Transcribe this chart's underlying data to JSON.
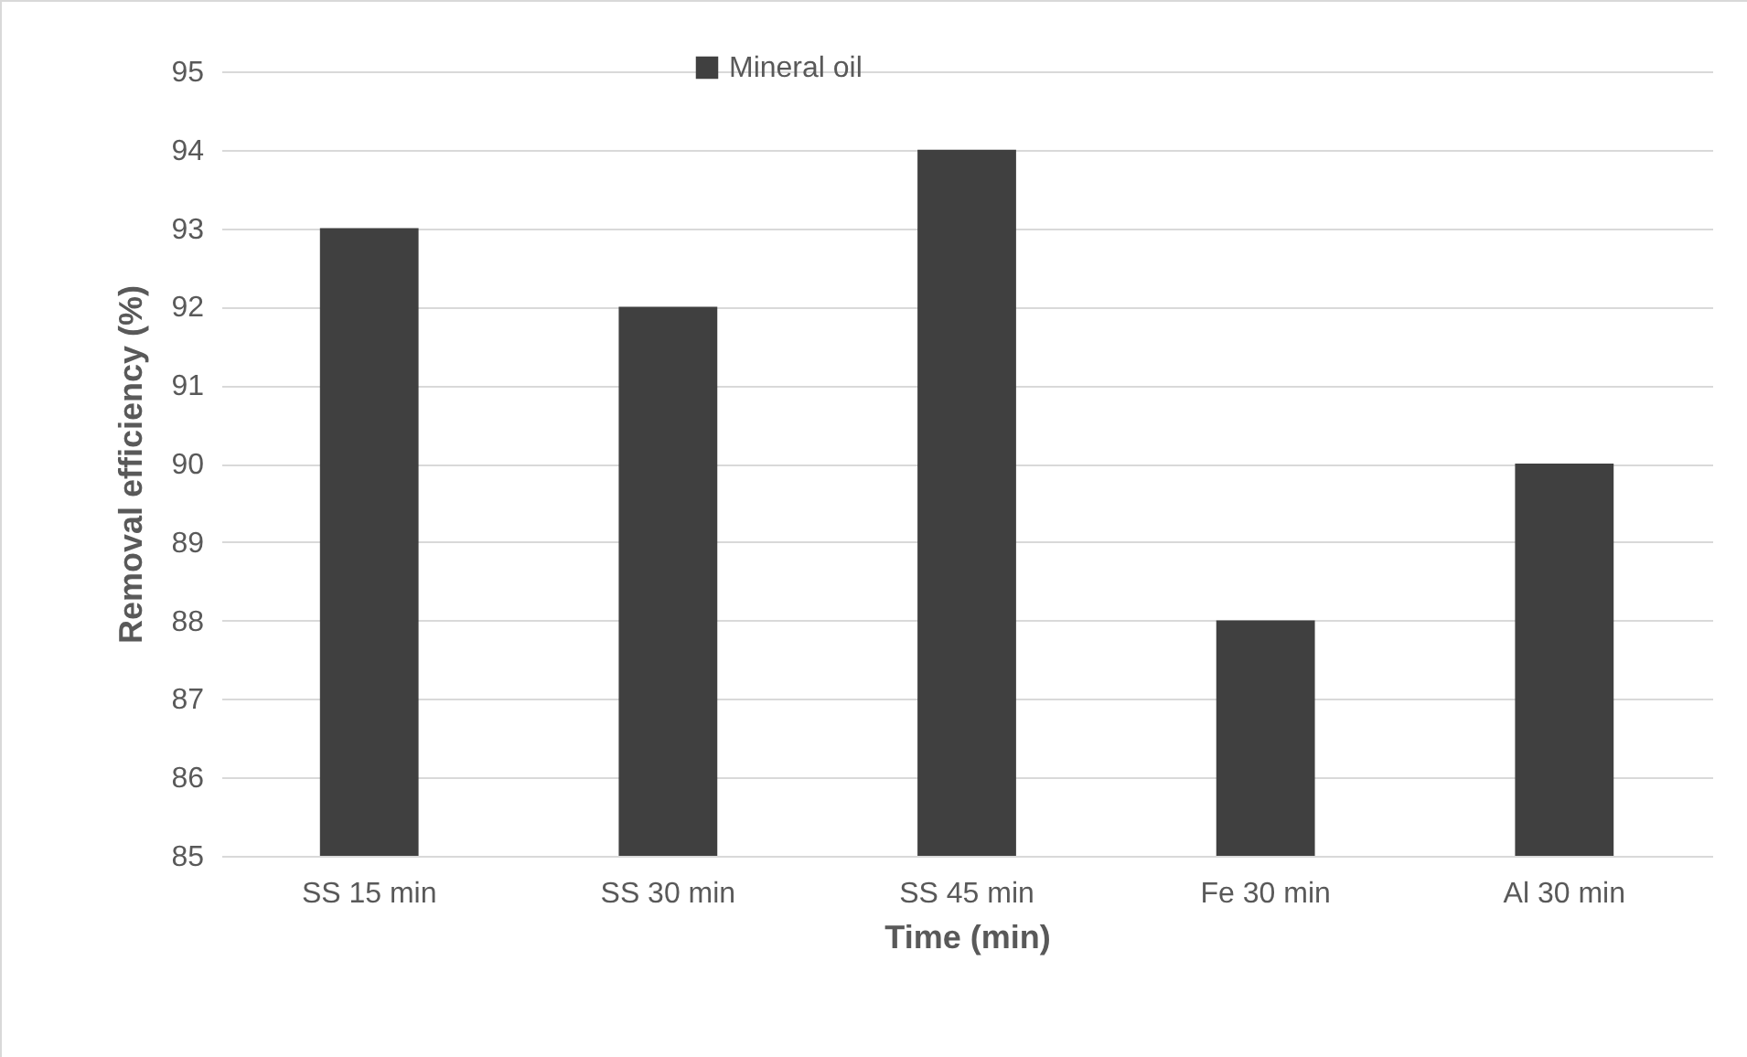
{
  "chart_data": {
    "type": "bar",
    "xlabel": "Time (min)",
    "ylabel": "Removal efficiency (%)",
    "categories": [
      "SS 15 min",
      "SS 30 min",
      "SS 45 min",
      "Fe 30 min",
      "Al 30 min"
    ],
    "series": [
      {
        "name": "Mineral oil",
        "color": "#404040",
        "values": [
          93,
          92,
          94,
          88,
          90
        ]
      }
    ],
    "ylim": [
      85,
      95
    ],
    "yticks": [
      85,
      86,
      87,
      88,
      89,
      90,
      91,
      92,
      93,
      94,
      95
    ],
    "grid": "y",
    "legend": "top"
  }
}
